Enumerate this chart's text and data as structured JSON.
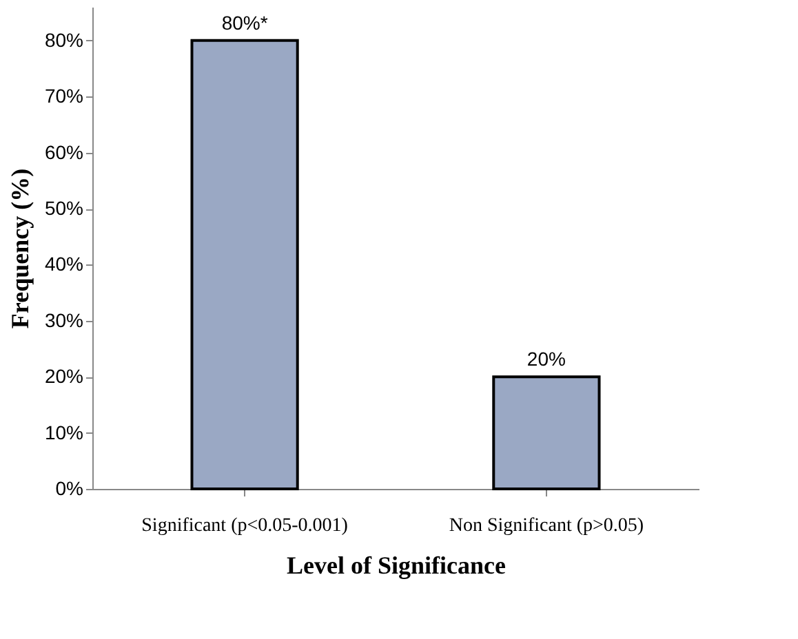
{
  "chart_data": {
    "type": "bar",
    "categories": [
      "Significant (p<0.05-0.001)",
      "Non Significant (p>0.05)"
    ],
    "values": [
      80,
      20
    ],
    "color": "#9aa8c4",
    "value_labels": [
      "80%*",
      "20%"
    ],
    "xlabel": "Level of Significance",
    "ylabel": "Frequency (%)",
    "ylim": [
      0,
      86
    ],
    "yticks": [
      {
        "value": 0,
        "label": "0%"
      },
      {
        "value": 10,
        "label": "10%"
      },
      {
        "value": 20,
        "label": "20%"
      },
      {
        "value": 30,
        "label": "30%"
      },
      {
        "value": 40,
        "label": "40%"
      },
      {
        "value": 50,
        "label": "50%"
      },
      {
        "value": 60,
        "label": "60%"
      },
      {
        "value": 70,
        "label": "70%"
      },
      {
        "value": 80,
        "label": "80%"
      }
    ],
    "grid": false
  }
}
